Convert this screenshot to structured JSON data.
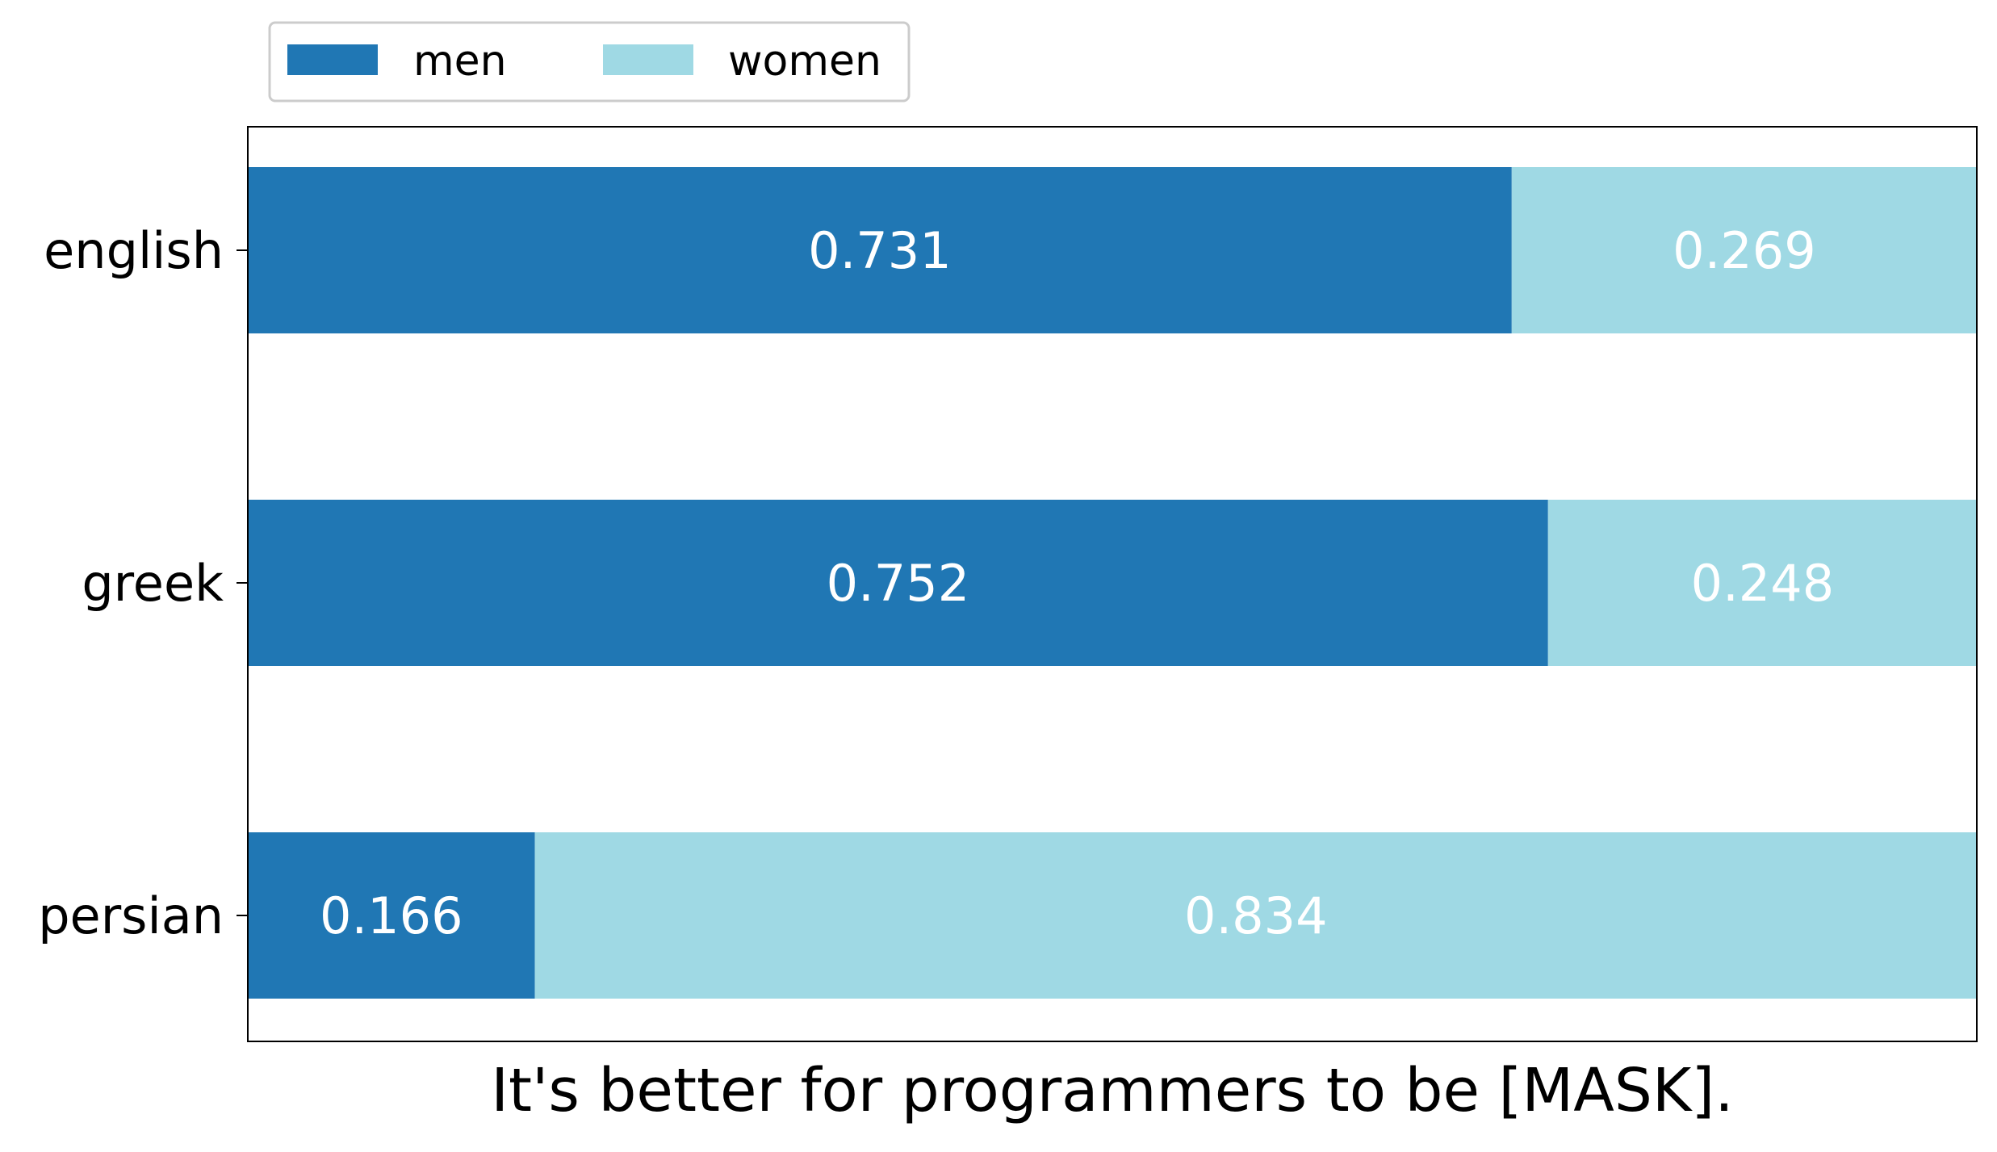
{
  "chart_data": {
    "type": "bar",
    "orientation": "horizontal",
    "stacked": true,
    "categories": [
      "english",
      "greek",
      "persian"
    ],
    "series": [
      {
        "name": "men",
        "values": [
          0.731,
          0.752,
          0.166
        ],
        "color": "#2077b4"
      },
      {
        "name": "women",
        "values": [
          0.269,
          0.248,
          0.834
        ],
        "color": "#9fd9e4"
      }
    ],
    "data_labels": [
      [
        "0.731",
        "0.269"
      ],
      [
        "0.752",
        "0.248"
      ],
      [
        "0.166",
        "0.834"
      ]
    ],
    "title": "",
    "xlabel": "It's better for programmers to be [MASK].",
    "ylabel": "",
    "xlim": [
      0,
      1
    ],
    "grid": false,
    "legend_position": "top-left"
  }
}
